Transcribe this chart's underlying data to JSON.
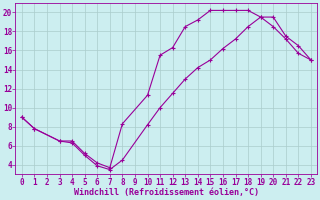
{
  "xlabel": "Windchill (Refroidissement éolien,°C)",
  "bg_color": "#cceef0",
  "line_color": "#990099",
  "grid_color": "#aacccc",
  "xlim": [
    -0.5,
    23.5
  ],
  "ylim": [
    3.0,
    21.0
  ],
  "xticks": [
    0,
    1,
    2,
    3,
    4,
    5,
    6,
    7,
    8,
    9,
    10,
    11,
    12,
    13,
    14,
    15,
    16,
    17,
    18,
    19,
    20,
    21,
    22,
    23
  ],
  "yticks": [
    4,
    6,
    8,
    10,
    12,
    14,
    16,
    18,
    20
  ],
  "line1_x": [
    0,
    1,
    3,
    4,
    5,
    6,
    7,
    8,
    10,
    11,
    12,
    13,
    14,
    15,
    16,
    17,
    18,
    19,
    20,
    21,
    22,
    23
  ],
  "line1_y": [
    9.0,
    7.8,
    6.5,
    6.5,
    5.2,
    4.2,
    3.7,
    8.3,
    11.3,
    15.5,
    16.3,
    18.5,
    19.2,
    20.2,
    20.2,
    20.2,
    20.2,
    19.5,
    18.5,
    17.2,
    15.7,
    15.0
  ],
  "line2_x": [
    0,
    1,
    3,
    4,
    5,
    6,
    7,
    8,
    10,
    11,
    12,
    13,
    14,
    15,
    16,
    17,
    18,
    19,
    20,
    21,
    22,
    23
  ],
  "line2_y": [
    9.0,
    7.8,
    6.5,
    6.3,
    5.0,
    3.9,
    3.5,
    4.5,
    8.2,
    10.0,
    11.5,
    13.0,
    14.2,
    15.0,
    16.2,
    17.2,
    18.5,
    19.5,
    19.5,
    17.5,
    16.5,
    15.0
  ],
  "tick_fontsize": 5.5,
  "xlabel_fontsize": 6.0
}
